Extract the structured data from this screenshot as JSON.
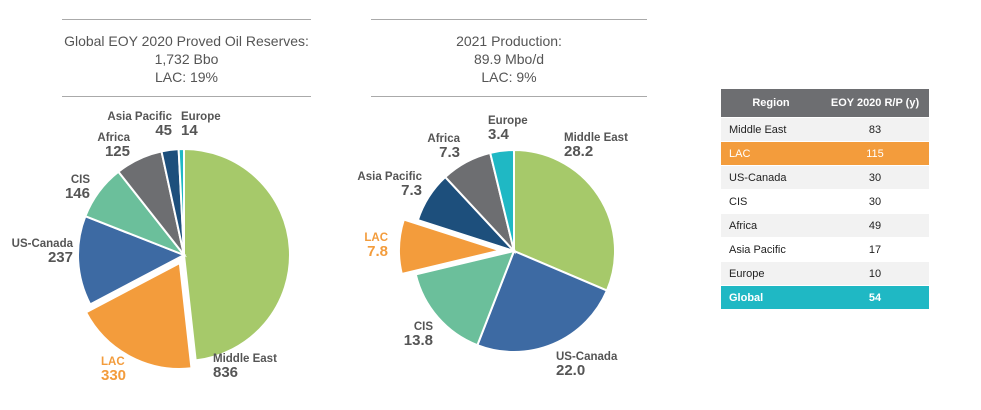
{
  "chart_data": [
    {
      "type": "pie",
      "title_lines": [
        "Global EOY 2020 Proved Oil Reserves:",
        "1,732 Bbo",
        "LAC: 19%"
      ],
      "slices": [
        {
          "name": "Middle East",
          "value": 836,
          "color": "#a6c96a",
          "highlight": false
        },
        {
          "name": "LAC",
          "value": 330,
          "color": "#f39c3c",
          "highlight": true,
          "exploded": true
        },
        {
          "name": "US-Canada",
          "value": 237,
          "color": "#3d6aa3",
          "highlight": false
        },
        {
          "name": "CIS",
          "value": 146,
          "color": "#6bbf9b",
          "highlight": false
        },
        {
          "name": "Africa",
          "value": 125,
          "color": "#6d6e71",
          "highlight": false
        },
        {
          "name": "Asia Pacific",
          "value": 45,
          "color": "#1d4f7c",
          "highlight": false
        },
        {
          "name": "Europe",
          "value": 14,
          "color": "#1fb8c4",
          "highlight": false
        }
      ]
    },
    {
      "type": "pie",
      "title_lines": [
        "2021 Production:",
        "89.9 Mbo/d",
        "LAC: 9%"
      ],
      "slices": [
        {
          "name": "Middle East",
          "value": 28.2,
          "label": "28.2",
          "color": "#a6c96a",
          "highlight": false
        },
        {
          "name": "US-Canada",
          "value": 22.0,
          "label": "22.0",
          "color": "#3d6aa3",
          "highlight": false
        },
        {
          "name": "CIS",
          "value": 13.8,
          "label": "13.8",
          "color": "#6bbf9b",
          "highlight": false
        },
        {
          "name": "LAC",
          "value": 7.8,
          "label": "7.8",
          "color": "#f39c3c",
          "highlight": true,
          "exploded": true
        },
        {
          "name": "Asia Pacific",
          "value": 7.3,
          "label": "7.3",
          "color": "#1d4f7c",
          "highlight": false
        },
        {
          "name": "Africa",
          "value": 7.3,
          "label": "7.3",
          "color": "#6d6e71",
          "highlight": false
        },
        {
          "name": "Europe",
          "value": 3.4,
          "label": "3.4",
          "color": "#1fb8c4",
          "highlight": false
        }
      ]
    },
    {
      "type": "table",
      "headers": [
        "Region",
        "EOY 2020 R/P (y)"
      ],
      "rows": [
        {
          "region": "Middle East",
          "value": "83",
          "style": "odd"
        },
        {
          "region": "LAC",
          "value": "115",
          "style": "hl"
        },
        {
          "region": "US-Canada",
          "value": "30",
          "style": "odd"
        },
        {
          "region": "CIS",
          "value": "30",
          "style": "even"
        },
        {
          "region": "Africa",
          "value": "49",
          "style": "odd"
        },
        {
          "region": "Asia Pacific",
          "value": "17",
          "style": "even"
        },
        {
          "region": "Europe",
          "value": "10",
          "style": "odd"
        },
        {
          "region": "Global",
          "value": "54",
          "style": "total"
        }
      ]
    }
  ],
  "colors": {
    "label_dark": "#555555",
    "label_highlight": "#f39c3c",
    "title_text": "#555555"
  }
}
